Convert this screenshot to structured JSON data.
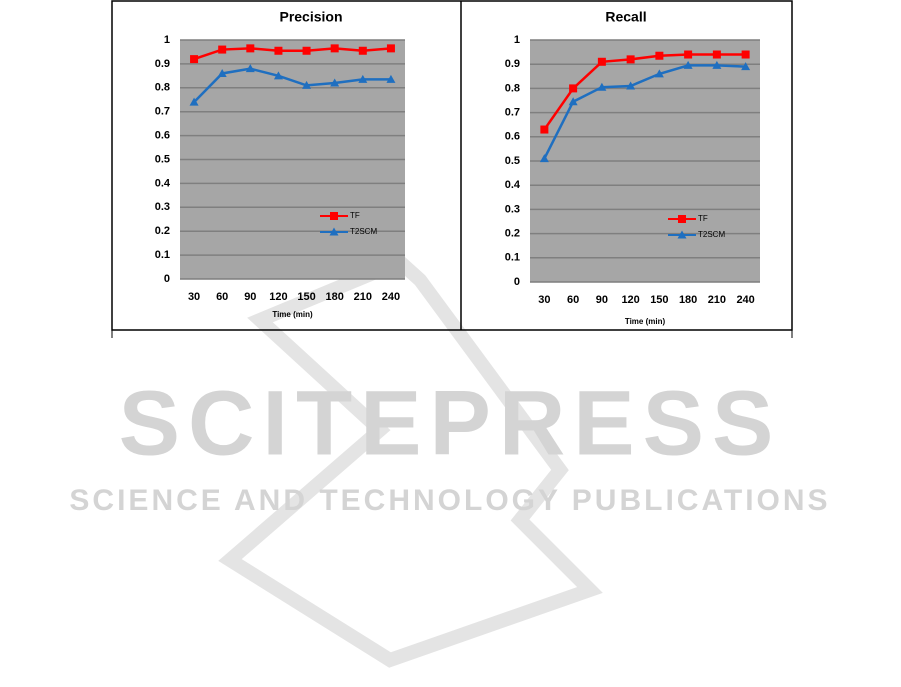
{
  "chart_data": [
    {
      "type": "line",
      "title": "Precision",
      "x_label": "Time (min)",
      "categories": [
        "30",
        "60",
        "90",
        "120",
        "150",
        "180",
        "210",
        "240"
      ],
      "series": [
        {
          "name": "TF",
          "color": "#ff0000",
          "marker": "square",
          "values": [
            0.92,
            0.96,
            0.965,
            0.955,
            0.955,
            0.965,
            0.955,
            0.965
          ]
        },
        {
          "name": "T2SCM",
          "color": "#1f6fc0",
          "marker": "triangle",
          "values": [
            0.74,
            0.86,
            0.88,
            0.85,
            0.81,
            0.82,
            0.835,
            0.835
          ]
        }
      ],
      "ylim": [
        0,
        1
      ],
      "yticks": [
        0,
        0.1,
        0.2,
        0.3,
        0.4,
        0.5,
        0.6,
        0.7,
        0.8,
        0.9,
        1
      ],
      "grid": true,
      "legend": "lower right"
    },
    {
      "type": "line",
      "title": "Recall",
      "x_label": "Time (min)",
      "categories": [
        "30",
        "60",
        "90",
        "120",
        "150",
        "180",
        "210",
        "240"
      ],
      "series": [
        {
          "name": "TF",
          "color": "#ff0000",
          "marker": "square",
          "values": [
            0.63,
            0.8,
            0.91,
            0.92,
            0.935,
            0.94,
            0.94,
            0.94
          ]
        },
        {
          "name": "T2SCM",
          "color": "#1f6fc0",
          "marker": "triangle",
          "values": [
            0.51,
            0.745,
            0.805,
            0.81,
            0.86,
            0.895,
            0.895,
            0.89
          ]
        }
      ],
      "ylim": [
        0,
        1
      ],
      "yticks": [
        0,
        0.1,
        0.2,
        0.3,
        0.4,
        0.5,
        0.6,
        0.7,
        0.8,
        0.9,
        1
      ],
      "grid": true,
      "legend": "lower right"
    }
  ],
  "watermark": {
    "title": "SCITEPRESS",
    "subtitle": "SCIENCE AND TECHNOLOGY PUBLICATIONS"
  }
}
